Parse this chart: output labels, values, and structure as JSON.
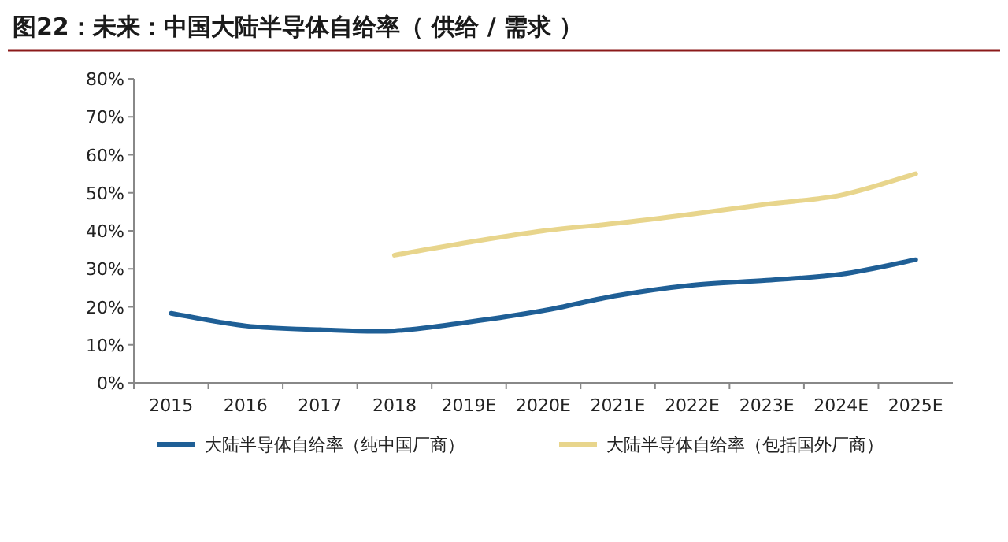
{
  "chart_data": {
    "type": "line",
    "title": "图22：未来：中国大陆半导体自给率（ 供给 / 需求 ）",
    "categories": [
      "2015",
      "2016",
      "2017",
      "2018",
      "2019E",
      "2020E",
      "2021E",
      "2022E",
      "2023E",
      "2024E",
      "2025E"
    ],
    "series": [
      {
        "name": "大陆半导体自给率（纯中国厂商）",
        "color": "#1f5f96",
        "values": [
          18.3,
          15,
          14,
          13.7,
          16,
          19,
          23,
          25.7,
          27,
          28.6,
          32.4
        ]
      },
      {
        "name": "大陆半导体自给率（包括国外厂商）",
        "color": "#e8d58c",
        "values": [
          null,
          null,
          null,
          33.6,
          37,
          40,
          42,
          44.4,
          47,
          49.4,
          55
        ]
      }
    ],
    "ylim": [
      0,
      80
    ],
    "yticks": [
      {
        "value": 0,
        "label": "0%"
      },
      {
        "value": 10,
        "label": "10%"
      },
      {
        "value": 20,
        "label": "20%"
      },
      {
        "value": 30,
        "label": "30%"
      },
      {
        "value": 40,
        "label": "40%"
      },
      {
        "value": 50,
        "label": "50%"
      },
      {
        "value": 60,
        "label": "60%"
      },
      {
        "value": 70,
        "label": "70%"
      },
      {
        "value": 80,
        "label": "80%"
      }
    ],
    "legend": "bottom",
    "grid": false
  }
}
